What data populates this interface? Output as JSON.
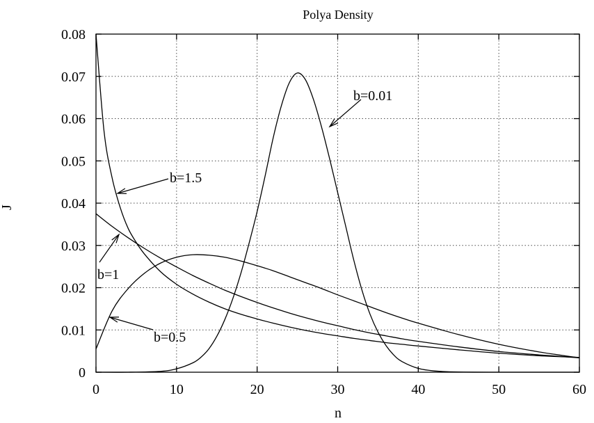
{
  "chart_data": {
    "type": "line",
    "title": "Polya Density",
    "xlabel": "n",
    "ylabel": "J",
    "xlim": [
      0,
      60
    ],
    "ylim": [
      0,
      0.08
    ],
    "grid": true,
    "x_ticks": [
      "0",
      "10",
      "20",
      "30",
      "40",
      "50",
      "60"
    ],
    "y_ticks": [
      "0",
      "0.01",
      "0.02",
      "0.03",
      "0.04",
      "0.05",
      "0.06",
      "0.07",
      "0.08"
    ],
    "x_tick_values": [
      0,
      10,
      20,
      30,
      40,
      50,
      60
    ],
    "y_tick_values": [
      0,
      0.01,
      0.02,
      0.03,
      0.04,
      0.05,
      0.06,
      0.07,
      0.08
    ],
    "series": [
      {
        "x": [
          0,
          2,
          4,
          6,
          8,
          10,
          12,
          14,
          16,
          18,
          20,
          22,
          24,
          26,
          28,
          30,
          32,
          34,
          36,
          38,
          40,
          45,
          50,
          55,
          60
        ],
        "y": [
          0.0375,
          0.0345,
          0.0318,
          0.0293,
          0.027,
          0.0249,
          0.0229,
          0.0211,
          0.0194,
          0.0179,
          0.0165,
          0.0152,
          0.014,
          0.0129,
          0.0119,
          0.011,
          0.0101,
          0.0093,
          0.0086,
          0.0079,
          0.0073,
          0.006,
          0.0049,
          0.0041,
          0.0034
        ]
      },
      {
        "x": [
          0,
          1,
          2,
          3,
          4,
          5,
          6,
          8,
          10,
          12,
          14,
          16,
          18,
          20,
          22,
          24,
          26,
          28,
          30,
          32,
          34,
          36,
          38,
          40,
          45,
          50,
          55,
          60
        ],
        "y": [
          0.08,
          0.057,
          0.046,
          0.039,
          0.034,
          0.0307,
          0.028,
          0.0238,
          0.0208,
          0.0185,
          0.0166,
          0.015,
          0.0137,
          0.0126,
          0.0116,
          0.0107,
          0.0099,
          0.0092,
          0.0086,
          0.008,
          0.0075,
          0.007,
          0.0066,
          0.0062,
          0.0053,
          0.0045,
          0.0039,
          0.0035
        ]
      },
      {
        "x": [
          0,
          2,
          4,
          6,
          8,
          10,
          12,
          14,
          16,
          18,
          20,
          22,
          24,
          26,
          28,
          30,
          32,
          34,
          36,
          38,
          40,
          45,
          50,
          55,
          60
        ],
        "y": [
          0.0055,
          0.0145,
          0.0198,
          0.0234,
          0.0258,
          0.0272,
          0.0278,
          0.0277,
          0.0272,
          0.0263,
          0.0252,
          0.024,
          0.0226,
          0.0212,
          0.0198,
          0.0183,
          0.0169,
          0.0155,
          0.0141,
          0.0128,
          0.0116,
          0.0089,
          0.0066,
          0.0048,
          0.0034
        ]
      },
      {
        "x": [
          0,
          4,
          8,
          10,
          12,
          13,
          14,
          15,
          16,
          17,
          18,
          19,
          20,
          21,
          22,
          23,
          24,
          25,
          26,
          27,
          28,
          29,
          30,
          31,
          32,
          33,
          34,
          35,
          36,
          37,
          38,
          40,
          42,
          45,
          50,
          55,
          60
        ],
        "y": [
          0,
          0,
          0.0002,
          0.0008,
          0.0022,
          0.0035,
          0.0055,
          0.0085,
          0.0125,
          0.0175,
          0.0235,
          0.0305,
          0.038,
          0.0465,
          0.0555,
          0.063,
          0.0685,
          0.0708,
          0.0692,
          0.0645,
          0.058,
          0.0505,
          0.0425,
          0.0345,
          0.0265,
          0.0195,
          0.0138,
          0.0095,
          0.0063,
          0.004,
          0.0025,
          0.0009,
          0.0003,
          5e-05,
          0,
          0,
          0
        ]
      }
    ],
    "annotations": [
      {
        "text": "b=0.01",
        "point": [
          30,
          0.0585
        ]
      },
      {
        "text": "b=1.5",
        "point": [
          2.5,
          0.0418
        ]
      },
      {
        "text": "b=1",
        "point": [
          2.7,
          0.0323
        ]
      },
      {
        "text": "b=0.5",
        "point": [
          1.5,
          0.0118
        ]
      }
    ]
  }
}
